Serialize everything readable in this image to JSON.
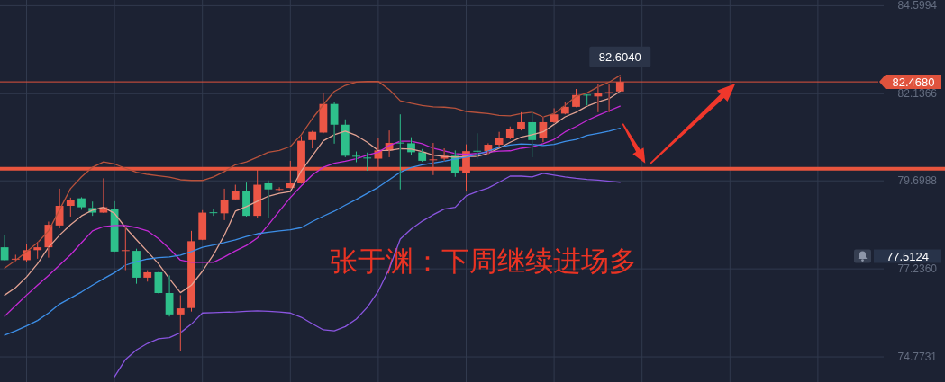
{
  "chart_data": {
    "type": "candlestick",
    "categories": [
      null,
      null,
      null,
      null,
      null,
      null,
      null,
      null,
      null,
      null,
      null,
      null,
      null,
      null,
      null,
      null,
      null,
      null,
      null,
      null,
      null,
      null,
      null,
      null,
      null,
      null,
      null,
      null,
      null,
      null,
      null,
      null,
      null,
      null,
      null,
      null,
      null,
      null,
      null,
      null,
      null,
      null,
      null,
      null,
      null,
      null,
      null,
      null,
      null,
      null,
      null,
      null,
      null,
      null,
      null,
      null,
      null,
      null,
      null,
      null,
      null,
      null,
      null,
      null,
      null,
      null,
      null,
      null,
      null,
      null,
      null,
      null,
      null,
      null,
      null,
      null,
      null,
      null,
      null,
      null
    ],
    "ohlc": [
      [
        77.84,
        78.18,
        77.47,
        77.48
      ],
      [
        77.5,
        77.63,
        77.45,
        77.52
      ],
      [
        77.48,
        77.93,
        77.42,
        77.76
      ],
      [
        77.76,
        77.99,
        77.52,
        77.84
      ],
      [
        77.84,
        78.56,
        77.55,
        78.47
      ],
      [
        78.45,
        79.48,
        78.37,
        79.0
      ],
      [
        79.0,
        79.23,
        78.7,
        79.17
      ],
      [
        79.21,
        79.24,
        78.89,
        78.96
      ],
      [
        78.94,
        79.12,
        78.72,
        78.81
      ],
      [
        78.81,
        79.77,
        78.8,
        78.96
      ],
      [
        78.92,
        79.13,
        77.71,
        77.72
      ],
      [
        77.75,
        78.39,
        77.2,
        77.76
      ],
      [
        77.74,
        77.8,
        76.82,
        76.99
      ],
      [
        76.99,
        77.2,
        76.88,
        77.14
      ],
      [
        77.14,
        77.15,
        76.55,
        76.56
      ],
      [
        76.56,
        77.05,
        75.9,
        75.96
      ],
      [
        75.96,
        76.5,
        74.95,
        76.13
      ],
      [
        76.14,
        78.3,
        76.04,
        78.01
      ],
      [
        78.05,
        78.88,
        78.04,
        78.81
      ],
      [
        78.82,
        78.91,
        78.72,
        78.8
      ],
      [
        78.79,
        79.48,
        78.6,
        79.17
      ],
      [
        79.18,
        79.59,
        79.17,
        79.42
      ],
      [
        79.42,
        79.65,
        78.7,
        78.72
      ],
      [
        78.72,
        80.01,
        78.66,
        79.59
      ],
      [
        79.63,
        79.71,
        78.66,
        79.46
      ],
      [
        79.45,
        79.52,
        79.42,
        79.47
      ],
      [
        79.5,
        80.26,
        79.49,
        79.63
      ],
      [
        79.63,
        80.95,
        79.62,
        80.82
      ],
      [
        80.84,
        81.1,
        80.61,
        81.07
      ],
      [
        81.05,
        82.15,
        81.03,
        81.85
      ],
      [
        81.85,
        81.91,
        80.74,
        81.27
      ],
      [
        81.27,
        81.42,
        80.36,
        80.4
      ],
      [
        80.4,
        80.52,
        80.22,
        80.38
      ],
      [
        80.35,
        80.49,
        79.98,
        80.34
      ],
      [
        80.32,
        80.9,
        80.08,
        80.55
      ],
      [
        80.55,
        81.11,
        80.36,
        80.76
      ],
      [
        80.77,
        81.56,
        79.46,
        80.75
      ],
      [
        80.75,
        80.92,
        80.43,
        80.5
      ],
      [
        80.5,
        80.59,
        80.23,
        80.26
      ],
      [
        80.29,
        80.76,
        79.86,
        80.3
      ],
      [
        80.32,
        80.61,
        80.26,
        80.4
      ],
      [
        80.4,
        80.55,
        79.81,
        79.91
      ],
      [
        79.91,
        80.72,
        79.4,
        80.53
      ],
      [
        80.54,
        81.03,
        80.32,
        80.52
      ],
      [
        80.53,
        80.75,
        80.44,
        80.71
      ],
      [
        80.71,
        81.07,
        80.65,
        80.89
      ],
      [
        80.89,
        81.22,
        80.86,
        81.14
      ],
      [
        81.14,
        81.62,
        81.11,
        81.34
      ],
      [
        81.34,
        81.66,
        80.36,
        80.84
      ],
      [
        80.89,
        81.49,
        80.78,
        81.34
      ],
      [
        81.34,
        81.73,
        81.31,
        81.56
      ],
      [
        81.58,
        81.91,
        81.56,
        81.77
      ],
      [
        81.77,
        82.27,
        81.76,
        82.1
      ],
      [
        82.11,
        82.12,
        81.81,
        82.1
      ],
      [
        82.06,
        82.42,
        81.62,
        82.15
      ],
      [
        82.17,
        82.42,
        81.62,
        82.18
      ],
      [
        82.2,
        82.604,
        82.19,
        82.468
      ],
      null,
      null,
      null,
      null,
      null,
      null,
      null,
      null,
      null,
      null,
      null,
      null,
      null,
      null,
      null,
      null,
      null,
      null,
      null,
      null,
      null,
      null,
      null
    ],
    "colors": [
      "#2ec08b",
      "#ec5646",
      "#ec5646",
      "#ec5646",
      "#ec5646",
      "#ec5646",
      "#ec5646",
      "#2ec08b",
      "#2ec08b",
      "#ec5646",
      "#2ec08b",
      "#ec5646",
      "#2ec08b",
      "#ec5646",
      "#2ec08b",
      "#2ec08b",
      "#ec5646",
      "#ec5646",
      "#ec5646",
      "#2ec08b",
      "#ec5646",
      "#ec5646",
      "#2ec08b",
      "#ec5646",
      "#2ec08b",
      "#ec5646",
      "#ec5646",
      "#ec5646",
      "#ec5646",
      "#ec5646",
      "#2ec08b",
      "#2ec08b",
      "#2ec08b",
      "#2ec08b",
      "#ec5646",
      "#ec5646",
      "#2ec08b",
      "#2ec08b",
      "#2ec08b",
      "#ec5646",
      "#ec5646",
      "#2ec08b",
      "#ec5646",
      "#2ec08b",
      "#ec5646",
      "#ec5646",
      "#ec5646",
      "#ec5646",
      "#2ec08b",
      "#ec5646",
      "#ec5646",
      "#ec5646",
      "#ec5646",
      "#2ec08b",
      "#ec5646",
      "#ec5646",
      "#ec5646",
      null,
      null,
      null,
      null,
      null,
      null,
      null,
      null,
      null,
      null,
      null,
      null,
      null,
      null,
      null,
      null,
      null,
      null,
      null,
      null,
      null,
      null,
      null
    ],
    "series": [
      {
        "type": "line",
        "color": "#b8523c",
        "values": [
          77.26,
          77.47,
          77.72,
          77.97,
          78.3,
          78.89,
          79.48,
          79.81,
          80.08,
          80.23,
          80.17,
          80.05,
          79.94,
          79.88,
          79.84,
          79.8,
          79.73,
          79.71,
          79.71,
          79.81,
          79.96,
          80.15,
          80.23,
          80.36,
          80.5,
          80.55,
          80.66,
          80.99,
          81.44,
          81.83,
          82.2,
          82.37,
          82.46,
          82.48,
          82.48,
          82.25,
          81.94,
          81.87,
          81.81,
          81.77,
          81.76,
          81.73,
          81.64,
          81.61,
          81.58,
          81.53,
          81.52,
          81.58,
          81.62,
          81.49,
          81.58,
          81.81,
          82.06,
          82.16,
          82.33,
          82.46,
          82.65,
          null,
          null,
          null,
          null,
          null,
          null,
          null,
          null,
          null,
          null,
          null,
          null,
          null,
          null,
          null,
          null,
          null,
          null,
          null,
          null,
          null,
          null,
          null
        ]
      },
      {
        "type": "line",
        "color": "#e3a393",
        "values": [
          76.5,
          76.71,
          77.01,
          77.38,
          77.84,
          78.18,
          78.47,
          78.72,
          78.88,
          78.96,
          78.79,
          78.39,
          78.05,
          77.72,
          77.38,
          76.96,
          76.57,
          76.78,
          77.17,
          77.63,
          78.18,
          78.85,
          78.98,
          79.13,
          79.27,
          79.35,
          79.4,
          79.98,
          80.4,
          80.82,
          80.99,
          81.09,
          80.97,
          80.78,
          80.55,
          80.55,
          80.6,
          80.59,
          80.52,
          80.42,
          80.38,
          80.36,
          80.38,
          80.38,
          80.47,
          80.61,
          80.78,
          80.92,
          80.99,
          81.07,
          81.28,
          81.49,
          81.62,
          81.79,
          81.91,
          82.0,
          82.2,
          null,
          null,
          null,
          null,
          null,
          null,
          null,
          null,
          null,
          null,
          null,
          null,
          null,
          null,
          null,
          null,
          null,
          null,
          null,
          null,
          null,
          null,
          null
        ]
      },
      {
        "type": "line",
        "color": "#c42ad6",
        "values": [
          75.91,
          76.21,
          76.5,
          76.78,
          77.05,
          77.34,
          77.63,
          77.97,
          78.3,
          78.42,
          78.45,
          78.45,
          78.39,
          78.3,
          78.08,
          77.8,
          77.48,
          77.42,
          77.42,
          77.42,
          77.57,
          77.74,
          77.89,
          78.1,
          78.47,
          78.85,
          79.23,
          79.56,
          79.86,
          80.08,
          80.19,
          80.25,
          80.32,
          80.42,
          80.5,
          80.69,
          80.81,
          80.81,
          80.74,
          80.61,
          80.54,
          80.46,
          80.44,
          80.47,
          80.5,
          80.53,
          80.54,
          80.61,
          80.65,
          80.74,
          80.86,
          81.07,
          81.22,
          81.39,
          81.53,
          81.66,
          81.79,
          null,
          null,
          null,
          null,
          null,
          null,
          null,
          null,
          null,
          null,
          null,
          null,
          null,
          null,
          null,
          null,
          null,
          null,
          null,
          null,
          null,
          null,
          null
        ]
      },
      {
        "type": "line",
        "color": "#3d8fe8",
        "values": [
          75.38,
          75.5,
          75.64,
          75.79,
          76.0,
          76.25,
          76.42,
          76.59,
          76.78,
          76.96,
          77.13,
          77.34,
          77.44,
          77.51,
          77.55,
          77.57,
          77.62,
          77.72,
          77.84,
          77.9,
          77.97,
          78.05,
          78.14,
          78.22,
          78.26,
          78.3,
          78.33,
          78.39,
          78.56,
          78.71,
          78.85,
          79.02,
          79.18,
          79.35,
          79.52,
          79.73,
          79.94,
          80.07,
          80.15,
          80.2,
          80.25,
          80.31,
          80.36,
          80.44,
          80.53,
          80.64,
          80.7,
          80.73,
          80.72,
          80.69,
          80.72,
          80.8,
          80.86,
          80.97,
          81.03,
          81.09,
          81.17,
          null,
          null,
          null,
          null,
          null,
          null,
          null,
          null,
          null,
          null,
          null,
          null,
          null,
          null,
          null,
          null,
          null,
          null,
          null,
          null,
          null,
          null,
          null
        ]
      },
      {
        "type": "line",
        "color": "#8a55e0",
        "values": [
          null,
          null,
          null,
          null,
          null,
          null,
          null,
          null,
          null,
          null,
          74.22,
          74.7,
          74.97,
          75.15,
          75.28,
          75.31,
          75.45,
          75.69,
          76.0,
          76.01,
          76.02,
          76.03,
          76.05,
          76.06,
          76.05,
          76.03,
          76.0,
          75.88,
          75.7,
          75.53,
          75.5,
          75.62,
          75.83,
          76.16,
          76.61,
          77.24,
          78.07,
          78.35,
          78.57,
          78.75,
          78.91,
          78.96,
          79.28,
          79.4,
          79.5,
          79.66,
          79.83,
          79.83,
          79.81,
          79.91,
          79.86,
          79.81,
          79.77,
          79.74,
          79.72,
          79.69,
          79.66,
          null,
          null,
          null,
          null,
          null,
          null,
          null,
          null,
          null,
          null,
          null,
          null,
          null,
          null,
          null,
          null,
          null,
          null,
          null,
          null,
          null,
          null,
          null
        ]
      }
    ],
    "ylim": [
      74.07,
      84.76
    ],
    "yticks": [
      74.7731,
      {
        "value": 77.236,
        "label": "77.2360"
      },
      79.6988,
      82.1366,
      84.5994
    ],
    "tick_labels": "y",
    "grid": true,
    "ref_lines": [
      {
        "axis": "y",
        "value": 80.04,
        "color": "#e8553e"
      },
      {
        "axis": "y",
        "value": 82.468,
        "label": "82.4680",
        "color": "#e0533d"
      }
    ],
    "annotations": [
      "张于渊：下周继续进场多",
      {
        "text": "82.6040",
        "y": 82.604
      },
      "77.5124"
    ]
  }
}
